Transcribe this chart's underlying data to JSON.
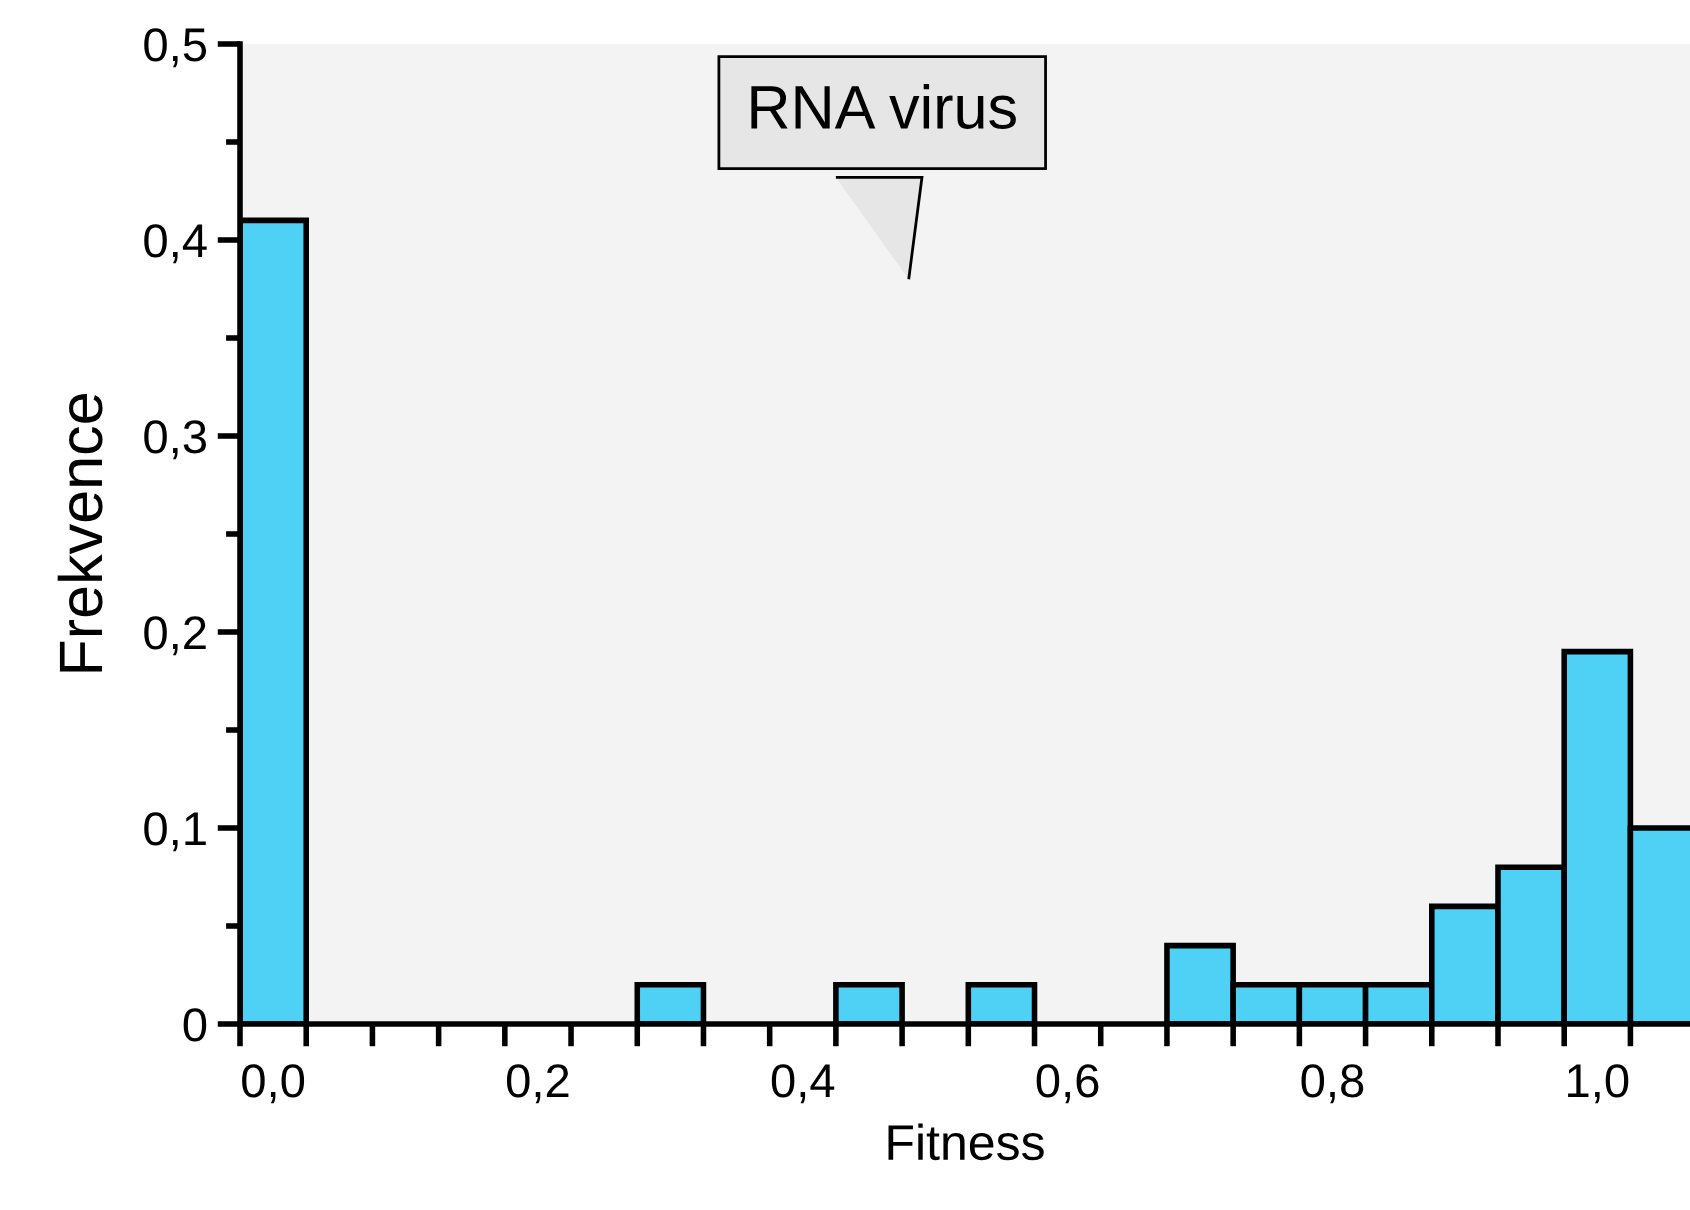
{
  "chart_data": {
    "type": "histogram",
    "xlabel": "Fitness",
    "ylabel": "Frekvence",
    "annotations": [
      "RNA virus"
    ],
    "bins": [
      -0.025,
      0.025,
      0.075,
      0.125,
      0.175,
      0.225,
      0.275,
      0.325,
      0.375,
      0.425,
      0.475,
      0.525,
      0.575,
      0.625,
      0.675,
      0.725,
      0.775,
      0.825,
      0.875,
      0.925,
      0.975,
      1.025,
      1.075
    ],
    "values": [
      0.41,
      0,
      0,
      0,
      0,
      0,
      0.02,
      0,
      0,
      0.02,
      0,
      0.02,
      0,
      0,
      0.04,
      0.02,
      0.02,
      0.02,
      0.06,
      0.08,
      0.19,
      0.1
    ],
    "color": "#4fd0f5",
    "xlim": [
      -0.025,
      1.07
    ],
    "ylim": [
      0,
      0.5
    ],
    "xticks": [
      {
        "value": 0.0,
        "label": "0,0"
      },
      {
        "value": 0.2,
        "label": "0,2"
      },
      {
        "value": 0.4,
        "label": "0,4"
      },
      {
        "value": 0.6,
        "label": "0,6"
      },
      {
        "value": 0.8,
        "label": "0,8"
      },
      {
        "value": 1.0,
        "label": "1,0"
      },
      {
        "value": -0.025,
        "label": null
      },
      {
        "value": 0.025,
        "label": null
      },
      {
        "value": 0.075,
        "label": null
      },
      {
        "value": 0.125,
        "label": null
      },
      {
        "value": 0.175,
        "label": null
      },
      {
        "value": 0.225,
        "label": null
      },
      {
        "value": 0.275,
        "label": null
      },
      {
        "value": 0.325,
        "label": null
      },
      {
        "value": 0.375,
        "label": null
      },
      {
        "value": 0.425,
        "label": null
      },
      {
        "value": 0.475,
        "label": null
      },
      {
        "value": 0.525,
        "label": null
      },
      {
        "value": 0.575,
        "label": null
      },
      {
        "value": 0.625,
        "label": null
      },
      {
        "value": 0.675,
        "label": null
      },
      {
        "value": 0.725,
        "label": null
      },
      {
        "value": 0.775,
        "label": null
      },
      {
        "value": 0.825,
        "label": null
      },
      {
        "value": 0.875,
        "label": null
      },
      {
        "value": 0.925,
        "label": null
      },
      {
        "value": 0.975,
        "label": null
      },
      {
        "value": 1.025,
        "label": null
      }
    ],
    "yticks": [
      {
        "value": 0,
        "label": "0"
      },
      {
        "value": 0.1,
        "label": "0,1"
      },
      {
        "value": 0.2,
        "label": "0,2"
      },
      {
        "value": 0.3,
        "label": "0,3"
      },
      {
        "value": 0.4,
        "label": "0,4"
      },
      {
        "value": 0.5,
        "label": "0,5"
      },
      {
        "value": 0.05,
        "label": null
      },
      {
        "value": 0.15,
        "label": null
      },
      {
        "value": 0.25,
        "label": null
      },
      {
        "value": 0.35,
        "label": null
      },
      {
        "value": 0.45,
        "label": null
      }
    ],
    "grid": false,
    "legend": false
  }
}
